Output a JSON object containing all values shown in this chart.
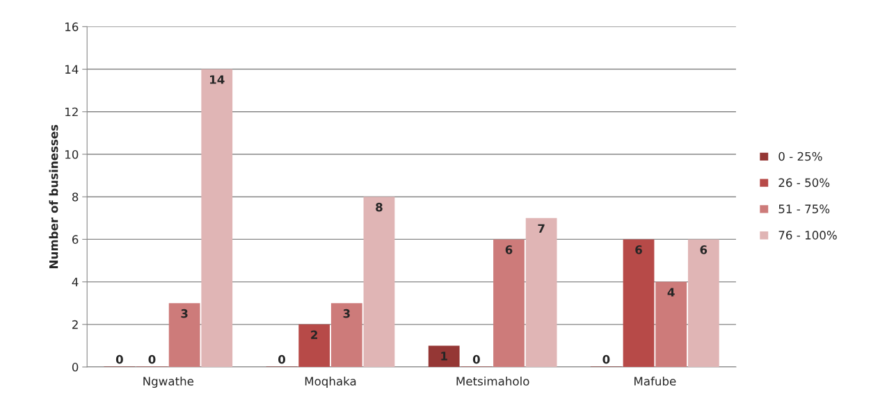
{
  "chart_data": {
    "type": "bar",
    "ylabel": "Number of businesses",
    "categories": [
      "Ngwathe",
      "Moqhaka",
      "Metsimaholo",
      "Mafube"
    ],
    "series": [
      {
        "name": "0 - 25%",
        "color": "#953735",
        "values": [
          0,
          0,
          1,
          0
        ]
      },
      {
        "name": "26 - 50%",
        "color": "#b74a48",
        "values": [
          0,
          2,
          0,
          6
        ]
      },
      {
        "name": "51 - 75%",
        "color": "#cd7b7a",
        "values": [
          3,
          3,
          6,
          4
        ]
      },
      {
        "name": "76 - 100%",
        "color": "#e0b5b5",
        "values": [
          14,
          8,
          7,
          6
        ]
      }
    ],
    "ylim": [
      0,
      16
    ],
    "yticks": [
      0,
      2,
      4,
      6,
      8,
      10,
      12,
      14,
      16
    ],
    "grid": "y",
    "legend": "right",
    "data_labels": true
  }
}
